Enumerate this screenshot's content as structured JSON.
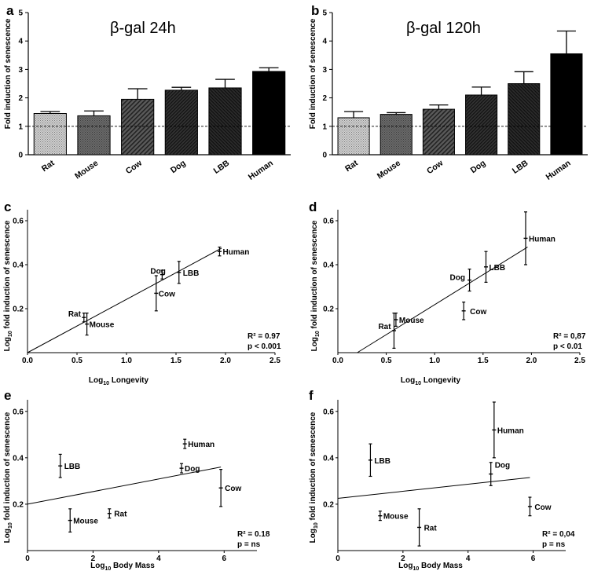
{
  "chart_data": [
    {
      "id": "a",
      "panel_label": "a",
      "type": "bar",
      "title": "β-gal 24h",
      "ylabel": "Fold induction of senescence",
      "ylim": [
        0,
        5
      ],
      "yticks": [
        "0",
        "1",
        "2",
        "3",
        "4",
        "5"
      ],
      "reference_line": 1,
      "categories": [
        "Rat",
        "Mouse",
        "Cow",
        "Dog",
        "LBB",
        "Human"
      ],
      "values": [
        1.45,
        1.37,
        1.95,
        2.27,
        2.35,
        2.93
      ],
      "errors": [
        0.07,
        0.17,
        0.37,
        0.1,
        0.3,
        0.13
      ],
      "fills": [
        "dots",
        "dense",
        "diag",
        "dark-diag",
        "dark-cross",
        "black"
      ]
    },
    {
      "id": "b",
      "panel_label": "b",
      "type": "bar",
      "title": "β-gal 120h",
      "ylabel": "Fold induction of senescence",
      "ylim": [
        0,
        5
      ],
      "yticks": [
        "0",
        "1",
        "2",
        "3",
        "4",
        "5"
      ],
      "reference_line": 1,
      "categories": [
        "Rat",
        "Mouse",
        "Cow",
        "Dog",
        "LBB",
        "Human"
      ],
      "values": [
        1.3,
        1.42,
        1.6,
        2.1,
        2.5,
        3.55
      ],
      "errors": [
        0.22,
        0.06,
        0.15,
        0.28,
        0.42,
        0.8
      ],
      "fills": [
        "dots",
        "dense",
        "diag",
        "dark-diag",
        "dark-cross",
        "black"
      ]
    },
    {
      "id": "c",
      "panel_label": "c",
      "type": "scatter",
      "ylabel": "Log10 fold induction of senescence",
      "xlabel": "Log10 Longevity",
      "xlim": [
        0,
        2.5
      ],
      "ylim": [
        0,
        0.65
      ],
      "xticks": [
        "0.0",
        "0.5",
        "1.0",
        "1.5",
        "2.0",
        "2.5"
      ],
      "yticks": [
        "0.2",
        "0.4",
        "0.6"
      ],
      "points": [
        {
          "label": "Rat",
          "x": 0.57,
          "y": 0.16,
          "err": 0.02
        },
        {
          "label": "Mouse",
          "x": 0.6,
          "y": 0.13,
          "err": 0.05
        },
        {
          "label": "Cow",
          "x": 1.3,
          "y": 0.27,
          "err": 0.08
        },
        {
          "label": "Dog",
          "x": 1.36,
          "y": 0.355,
          "err": 0.02
        },
        {
          "label": "LBB",
          "x": 1.53,
          "y": 0.365,
          "err": 0.05
        },
        {
          "label": "Human",
          "x": 1.94,
          "y": 0.46,
          "err": 0.02
        }
      ],
      "fit": [
        [
          0,
          0
        ],
        [
          1.96,
          0.475
        ]
      ],
      "r2": "R² = 0.97",
      "p": "p < 0.001"
    },
    {
      "id": "d",
      "panel_label": "d",
      "type": "scatter",
      "ylabel": "Log10 fold induction of senescence",
      "xlabel": "Log10 Longevity",
      "xlim": [
        0,
        2.5
      ],
      "ylim": [
        0,
        0.65
      ],
      "xticks": [
        "0.0",
        "0.5",
        "1.0",
        "1.5",
        "2.0",
        "2.5"
      ],
      "yticks": [
        "0.2",
        "0.4",
        "0.6"
      ],
      "points": [
        {
          "label": "Rat",
          "x": 0.58,
          "y": 0.1,
          "err": 0.08
        },
        {
          "label": "Mouse",
          "x": 0.6,
          "y": 0.15,
          "err": 0.03
        },
        {
          "label": "Cow",
          "x": 1.3,
          "y": 0.19,
          "err": 0.04
        },
        {
          "label": "Dog",
          "x": 1.36,
          "y": 0.33,
          "err": 0.05
        },
        {
          "label": "LBB",
          "x": 1.53,
          "y": 0.39,
          "err": 0.07
        },
        {
          "label": "Human",
          "x": 1.94,
          "y": 0.52,
          "err": 0.12
        }
      ],
      "fit": [
        [
          0.2,
          0
        ],
        [
          1.96,
          0.48
        ]
      ],
      "r2": "R² = 0,87",
      "p": "p < 0.01"
    },
    {
      "id": "e",
      "panel_label": "e",
      "type": "scatter",
      "ylabel": "Log10 fold induction of senescence",
      "xlabel": "Log10 Body Mass",
      "xlim": [
        0,
        7
      ],
      "ylim": [
        0,
        0.65
      ],
      "xticks": [
        "0",
        "2",
        "4",
        "6"
      ],
      "yticks": [
        "0.2",
        "0.4",
        "0.6"
      ],
      "points": [
        {
          "label": "LBB",
          "x": 1.0,
          "y": 0.365,
          "err": 0.05
        },
        {
          "label": "Mouse",
          "x": 1.3,
          "y": 0.13,
          "err": 0.05
        },
        {
          "label": "Rat",
          "x": 2.5,
          "y": 0.16,
          "err": 0.02
        },
        {
          "label": "Human",
          "x": 4.8,
          "y": 0.46,
          "err": 0.02
        },
        {
          "label": "Dog",
          "x": 4.7,
          "y": 0.355,
          "err": 0.02
        },
        {
          "label": "Cow",
          "x": 5.9,
          "y": 0.27,
          "err": 0.08
        }
      ],
      "fit": [
        [
          0,
          0.2
        ],
        [
          5.9,
          0.36
        ]
      ],
      "r2": "R² = 0.18",
      "p": "p = ns"
    },
    {
      "id": "f",
      "panel_label": "f",
      "type": "scatter",
      "ylabel": "Log10 fold induction of senescence",
      "xlabel": "Log10 Body Mass",
      "xlim": [
        0,
        7
      ],
      "ylim": [
        0,
        0.65
      ],
      "xticks": [
        "0",
        "2",
        "4",
        "6"
      ],
      "yticks": [
        "0.2",
        "0.4",
        "0.6"
      ],
      "points": [
        {
          "label": "LBB",
          "x": 1.0,
          "y": 0.39,
          "err": 0.07
        },
        {
          "label": "Mouse",
          "x": 1.3,
          "y": 0.15,
          "err": 0.02
        },
        {
          "label": "Rat",
          "x": 2.5,
          "y": 0.1,
          "err": 0.08
        },
        {
          "label": "Human",
          "x": 4.8,
          "y": 0.52,
          "err": 0.12
        },
        {
          "label": "Dog",
          "x": 4.7,
          "y": 0.33,
          "err": 0.05
        },
        {
          "label": "Cow",
          "x": 5.9,
          "y": 0.19,
          "err": 0.04
        }
      ],
      "fit": [
        [
          0,
          0.225
        ],
        [
          5.9,
          0.315
        ]
      ],
      "r2": "R² = 0,04",
      "p": "p = ns"
    }
  ]
}
